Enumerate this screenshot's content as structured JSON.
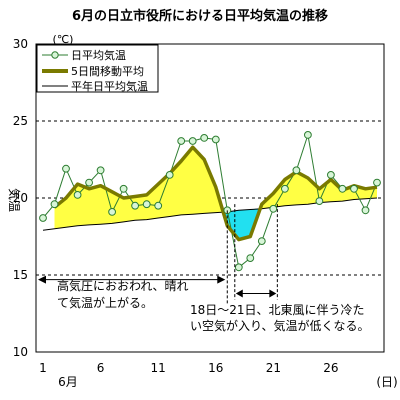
{
  "chart_data": {
    "type": "line",
    "title": "6月の日立市役所における日平均気温の推移",
    "unit_label": "(℃)",
    "ylabel": "気温",
    "xlabel": "(日)",
    "month_label": "6月",
    "ylim": [
      10,
      30
    ],
    "xlim": [
      1,
      30
    ],
    "yticks": [
      10,
      15,
      20,
      25,
      30
    ],
    "xticks": [
      1,
      6,
      11,
      16,
      21,
      26
    ],
    "grid": true,
    "grid_y_values": [
      15,
      20,
      25
    ],
    "legend_position": "top-left",
    "x": [
      1,
      2,
      3,
      4,
      5,
      6,
      7,
      8,
      9,
      10,
      11,
      12,
      13,
      14,
      15,
      16,
      17,
      18,
      19,
      20,
      21,
      22,
      23,
      24,
      25,
      26,
      27,
      28,
      29,
      30
    ],
    "series": [
      {
        "name": "日平均気温",
        "color": "#2e7d32",
        "marker_fill": "#d8f5d8",
        "values": [
          18.7,
          19.6,
          21.9,
          20.2,
          21.0,
          21.8,
          19.1,
          20.6,
          19.5,
          19.6,
          19.5,
          21.5,
          23.7,
          23.7,
          23.9,
          23.8,
          19.2,
          15.5,
          16.1,
          17.2,
          19.3,
          20.6,
          21.8,
          24.1,
          19.8,
          21.5,
          20.6,
          20.6,
          19.2,
          21.0
        ]
      },
      {
        "name": "5日間移動平均",
        "color": "#7a7a00",
        "values": [
          null,
          19.4,
          20.0,
          20.9,
          20.6,
          20.8,
          20.4,
          20.0,
          20.1,
          20.2,
          20.9,
          21.6,
          22.4,
          23.3,
          22.5,
          20.7,
          18.2,
          17.3,
          17.5,
          19.6,
          20.3,
          21.2,
          21.7,
          21.3,
          20.6,
          21.2,
          20.5,
          20.8,
          20.6,
          20.7
        ]
      },
      {
        "name": "平年日平均気温",
        "color": "#000000",
        "values": [
          17.9,
          18.0,
          18.1,
          18.2,
          18.25,
          18.3,
          18.35,
          18.45,
          18.55,
          18.6,
          18.7,
          18.8,
          18.9,
          18.95,
          19.0,
          19.05,
          19.1,
          19.2,
          19.25,
          19.3,
          19.4,
          19.5,
          19.55,
          19.6,
          19.7,
          19.75,
          19.8,
          19.9,
          19.95,
          20.0
        ]
      }
    ],
    "fill_above_color": "#ffff44",
    "fill_below_color": "#22e0f0",
    "annotations": [
      {
        "lines": [
          "高気圧におおわれ、晴れ",
          "て気温が上がる。"
        ],
        "x_range": [
          1,
          17
        ]
      },
      {
        "lines": [
          "18日～21日、北東風に伴う冷た",
          "い空気が入り、気温が低くなる。"
        ],
        "x_range": [
          18,
          21
        ]
      }
    ]
  }
}
